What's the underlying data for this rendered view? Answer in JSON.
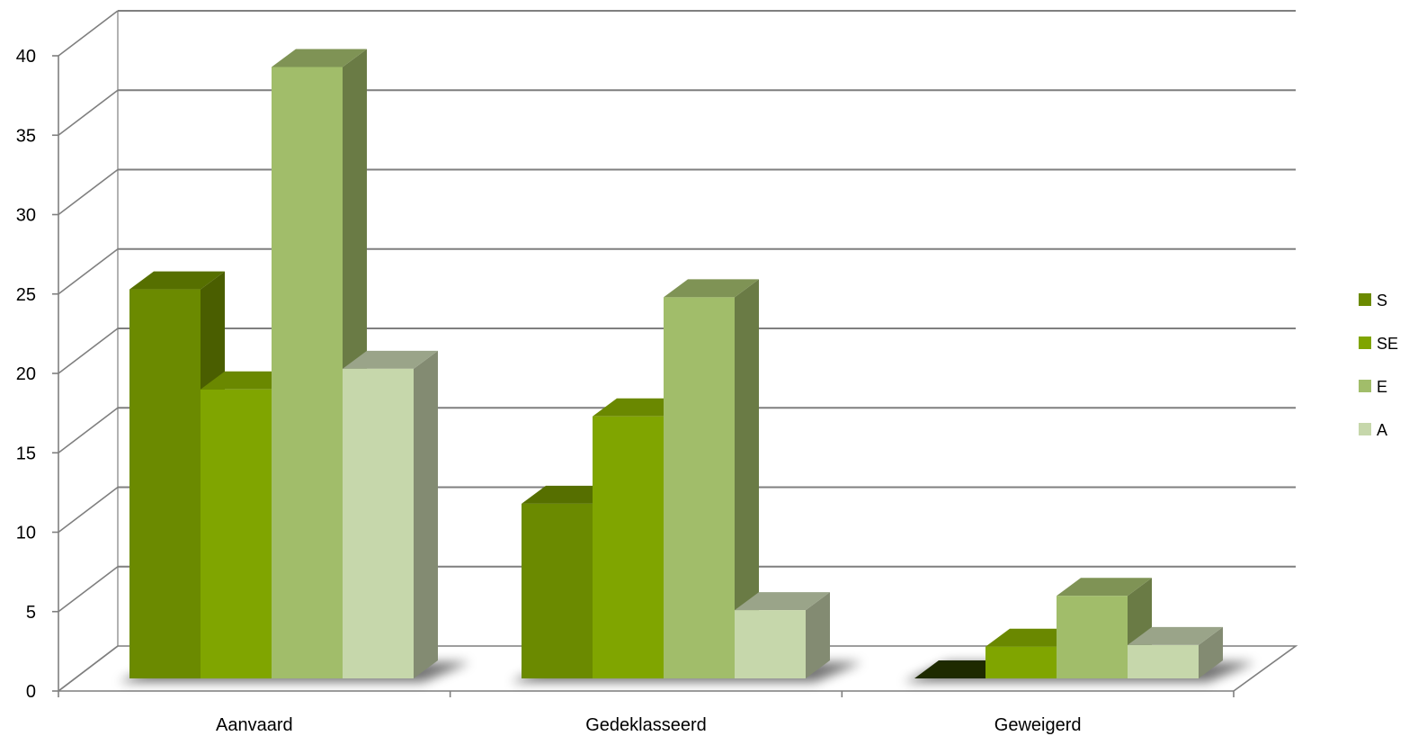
{
  "chart_data": {
    "type": "bar",
    "categories": [
      "Aanvaard",
      "Gedeklasseerd",
      "Geweigerd"
    ],
    "series": [
      {
        "name": "S",
        "values": [
          24.5,
          11,
          0
        ],
        "color": "#6b8a00",
        "side_color": "#4a5e00",
        "top_color": "#566f00"
      },
      {
        "name": "SE",
        "values": [
          18.2,
          16.5,
          2
        ],
        "color": "#80a500",
        "side_color": "#5e7a00",
        "top_color": "#6a8800"
      },
      {
        "name": "E",
        "values": [
          38.5,
          24,
          5.2
        ],
        "color": "#a1bd6a",
        "side_color": "#6a7b45",
        "top_color": "#7f9355"
      },
      {
        "name": "A",
        "values": [
          19.5,
          4.3,
          2.1
        ],
        "color": "#c6d7ab",
        "side_color": "#838b72",
        "top_color": "#9aa489"
      }
    ],
    "ylim": [
      0,
      40
    ],
    "yticks": [
      0,
      5,
      10,
      15,
      20,
      25,
      30,
      35,
      40
    ],
    "grid": true,
    "legend_position": "right",
    "title": "",
    "xlabel": "",
    "ylabel": ""
  }
}
